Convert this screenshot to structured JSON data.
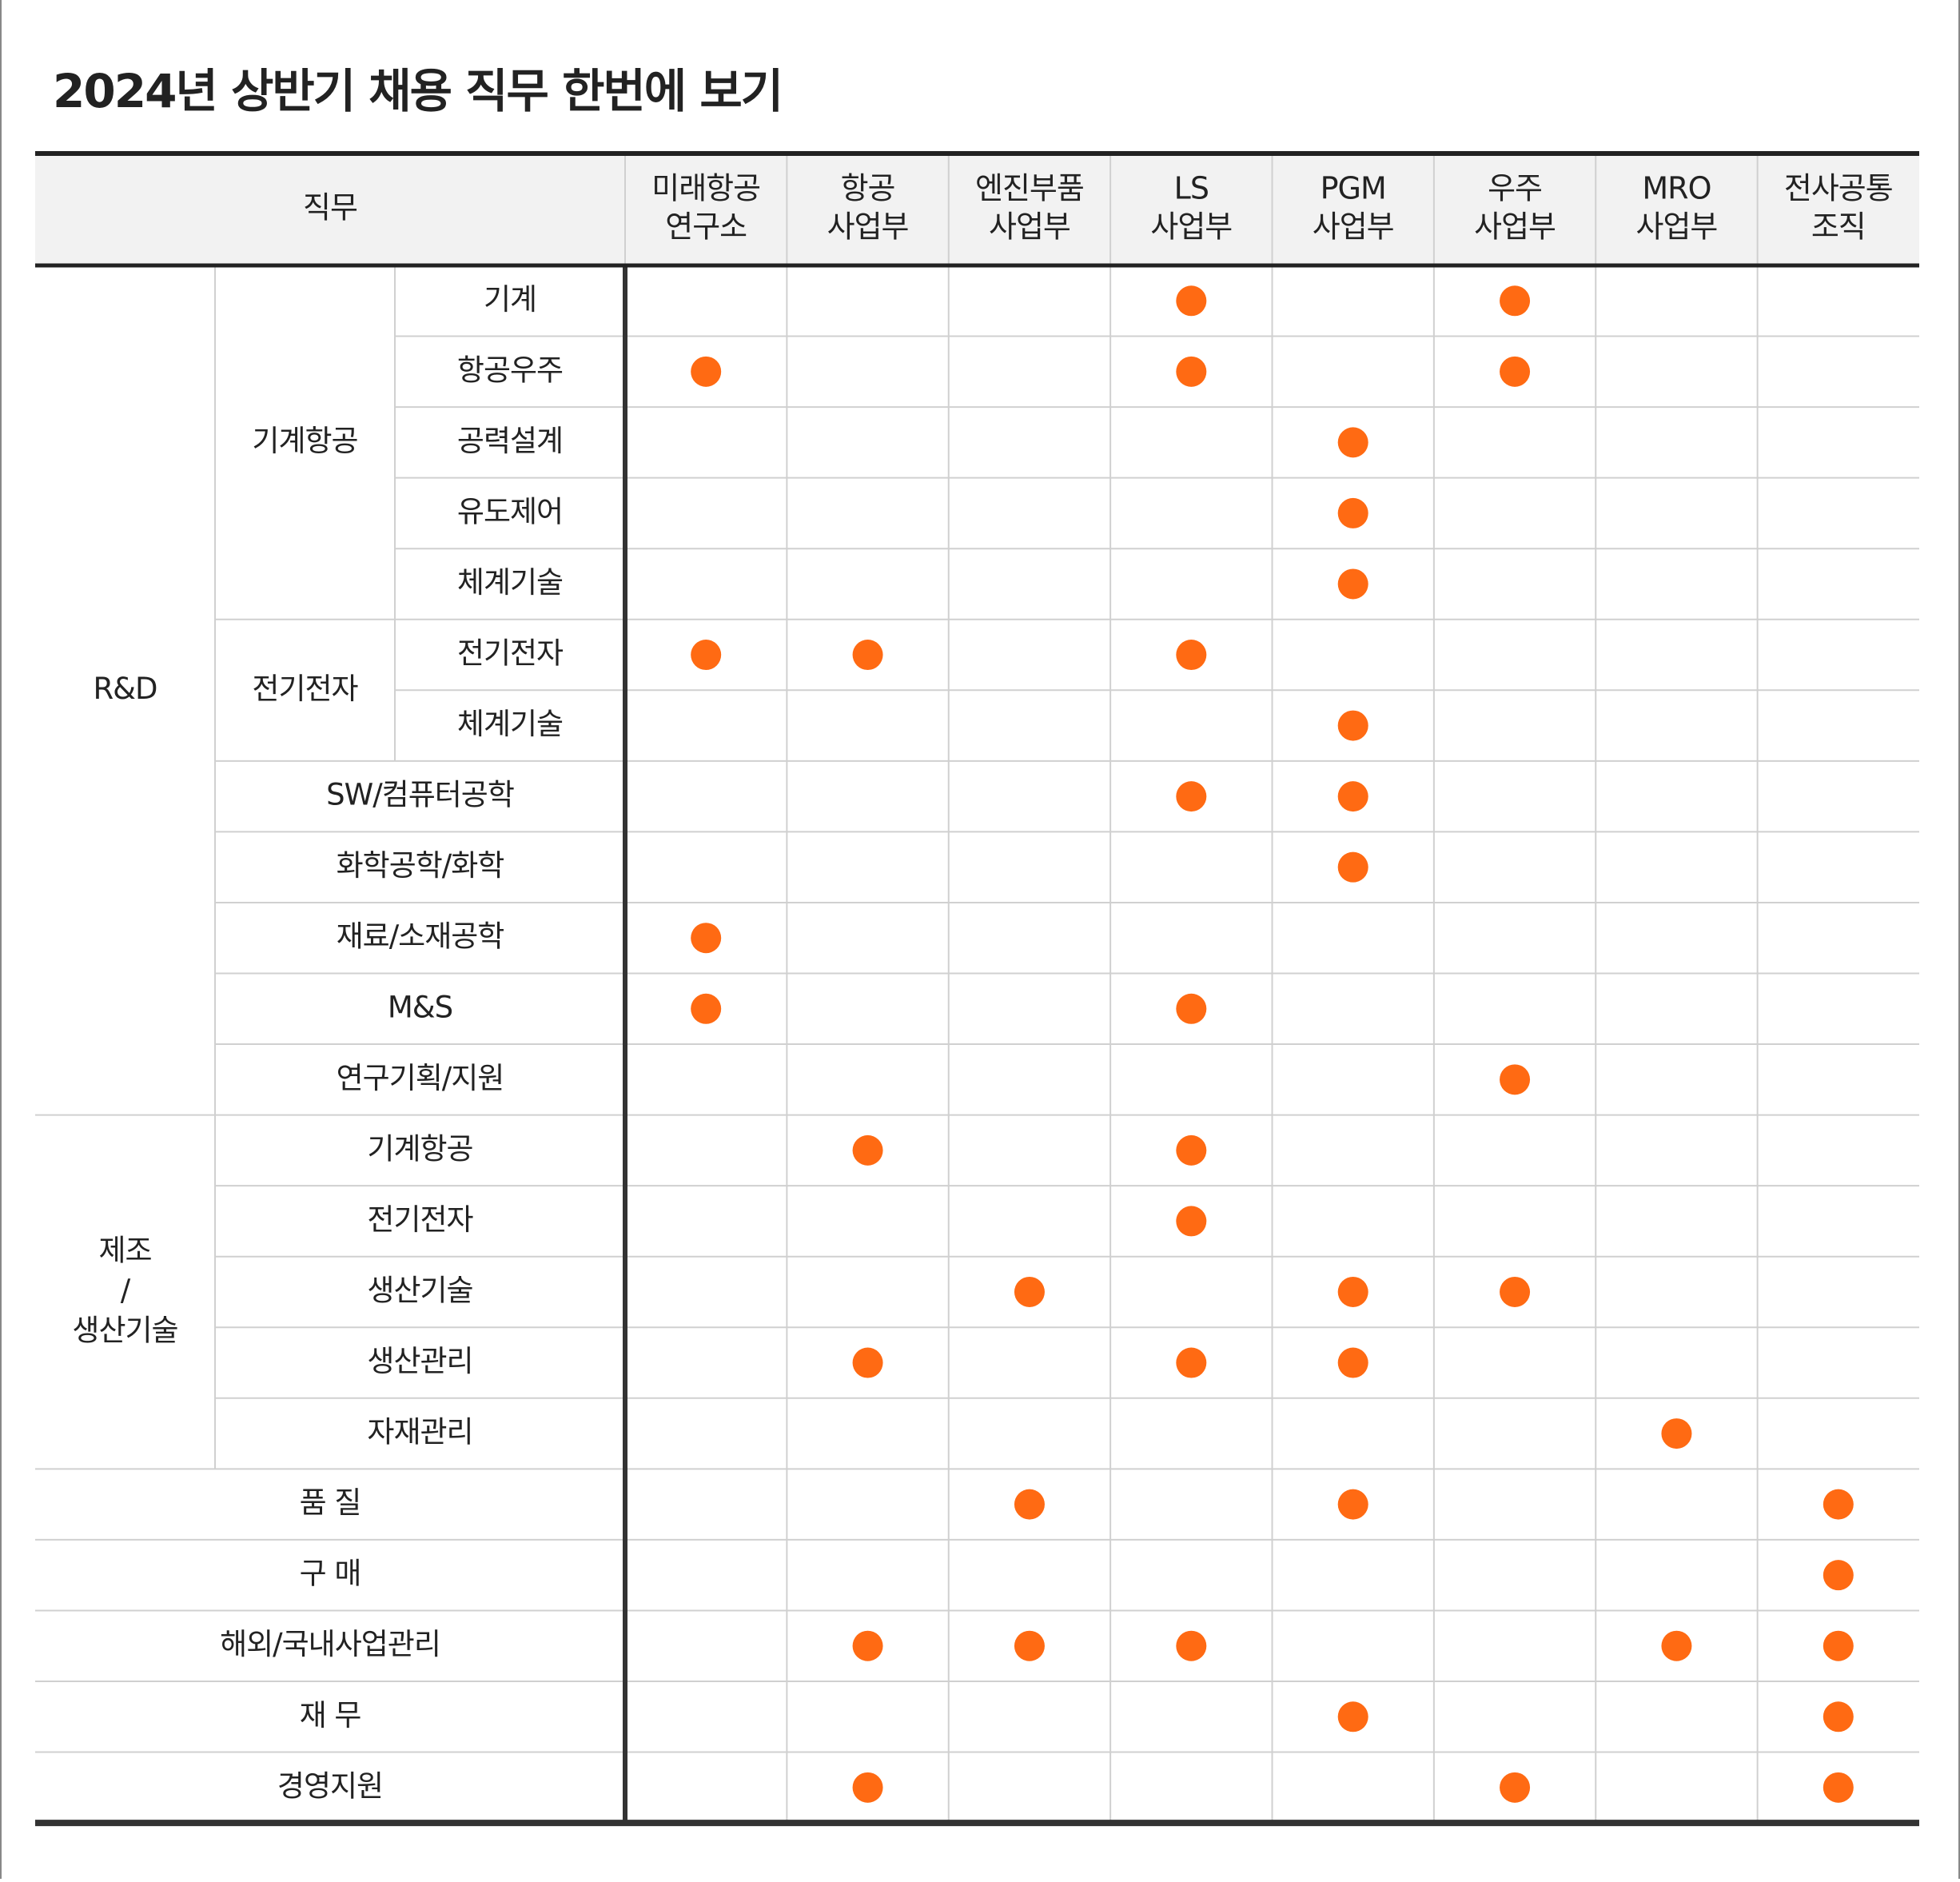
{
  "title": "2024년 상반기 채용 직무 한번에 보기",
  "header": {
    "job": "직무",
    "columns": [
      [
        "미래항공",
        "연구소"
      ],
      [
        "항공",
        "사업부"
      ],
      [
        "엔진부품",
        "사업부"
      ],
      [
        "LS",
        "사업부"
      ],
      [
        "PGM",
        "사업부"
      ],
      [
        "우주",
        "사업부"
      ],
      [
        "MRO",
        "사업부"
      ],
      [
        "전사공통",
        "조직"
      ]
    ]
  },
  "groups": [
    {
      "label": "R&D",
      "sections": [
        {
          "label": "기계항공",
          "rows": [
            {
              "label": "기계",
              "cells": [
                false,
                false,
                false,
                true,
                false,
                true,
                false,
                false
              ]
            },
            {
              "label": "항공우주",
              "cells": [
                true,
                false,
                false,
                true,
                false,
                true,
                false,
                false
              ]
            },
            {
              "label": "공력설계",
              "cells": [
                false,
                false,
                false,
                false,
                true,
                false,
                false,
                false
              ]
            },
            {
              "label": "유도제어",
              "cells": [
                false,
                false,
                false,
                false,
                true,
                false,
                false,
                false
              ]
            },
            {
              "label": "체계기술",
              "cells": [
                false,
                false,
                false,
                false,
                true,
                false,
                false,
                false
              ]
            }
          ]
        },
        {
          "label": "전기전자",
          "rows": [
            {
              "label": "전기전자",
              "cells": [
                true,
                true,
                false,
                true,
                false,
                false,
                false,
                false
              ]
            },
            {
              "label": "체계기술",
              "cells": [
                false,
                false,
                false,
                false,
                true,
                false,
                false,
                false
              ]
            }
          ]
        },
        {
          "rows": [
            {
              "label": "SW/컴퓨터공학",
              "cells": [
                false,
                false,
                false,
                true,
                true,
                false,
                false,
                false
              ]
            },
            {
              "label": "화학공학/화학",
              "cells": [
                false,
                false,
                false,
                false,
                true,
                false,
                false,
                false
              ]
            },
            {
              "label": "재료/소재공학",
              "cells": [
                true,
                false,
                false,
                false,
                false,
                false,
                false,
                false
              ]
            },
            {
              "label": "M&S",
              "cells": [
                true,
                false,
                false,
                true,
                false,
                false,
                false,
                false
              ]
            },
            {
              "label": "연구기획/지원",
              "cells": [
                false,
                false,
                false,
                false,
                false,
                true,
                false,
                false
              ]
            }
          ]
        }
      ]
    },
    {
      "label": [
        "제조",
        "/",
        "생산기술"
      ],
      "sections": [
        {
          "rows": [
            {
              "label": "기계항공",
              "cells": [
                false,
                true,
                false,
                true,
                false,
                false,
                false,
                false
              ]
            },
            {
              "label": "전기전자",
              "cells": [
                false,
                false,
                false,
                true,
                false,
                false,
                false,
                false
              ]
            },
            {
              "label": "생산기술",
              "cells": [
                false,
                false,
                true,
                false,
                true,
                true,
                false,
                false
              ]
            },
            {
              "label": "생산관리",
              "cells": [
                false,
                true,
                false,
                true,
                true,
                false,
                false,
                false
              ]
            },
            {
              "label": "자재관리",
              "cells": [
                false,
                false,
                false,
                false,
                false,
                false,
                true,
                false
              ]
            }
          ]
        }
      ]
    },
    {
      "sections": [
        {
          "rows": [
            {
              "label": "품 질",
              "cells": [
                false,
                false,
                true,
                false,
                true,
                false,
                false,
                true
              ]
            },
            {
              "label": "구 매",
              "cells": [
                false,
                false,
                false,
                false,
                false,
                false,
                false,
                true
              ]
            },
            {
              "label": "해외/국내사업관리",
              "cells": [
                false,
                true,
                true,
                true,
                false,
                false,
                true,
                true
              ]
            },
            {
              "label": "재 무",
              "cells": [
                false,
                false,
                false,
                false,
                true,
                false,
                false,
                true
              ]
            },
            {
              "label": "경영지원",
              "cells": [
                false,
                true,
                false,
                false,
                false,
                true,
                false,
                true
              ]
            }
          ]
        }
      ]
    }
  ]
}
